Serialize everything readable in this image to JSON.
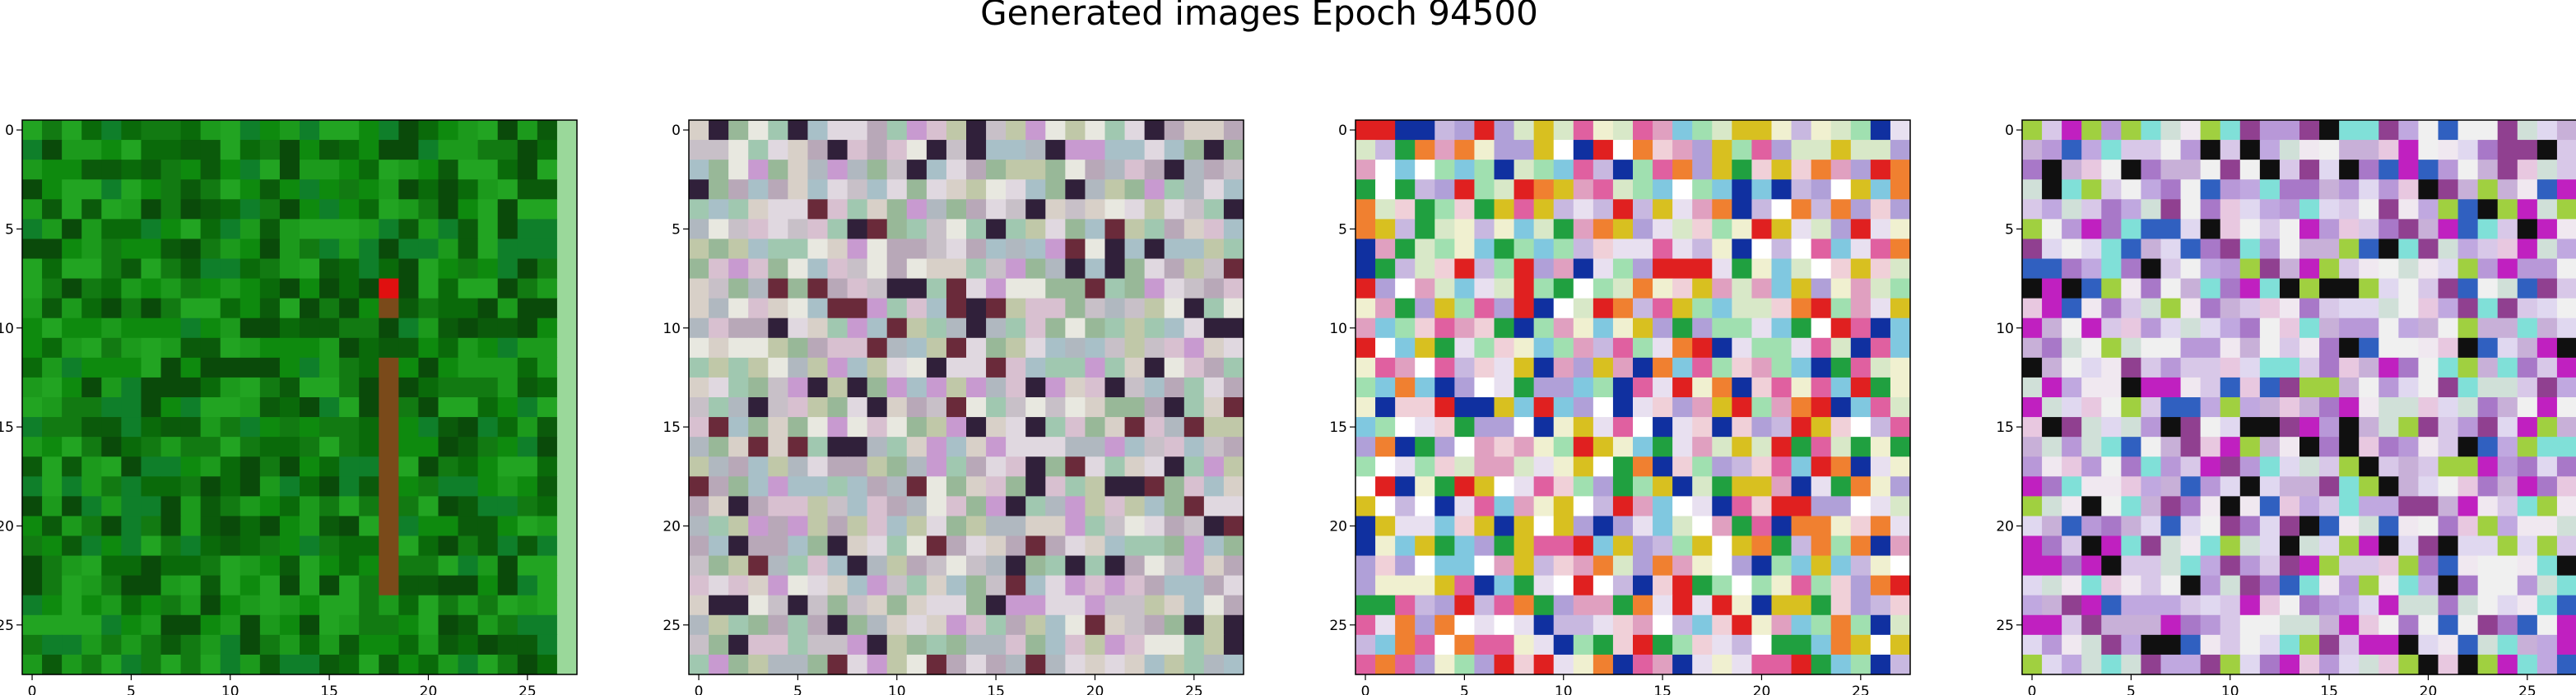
{
  "title": "Generated images Epoch 94500",
  "chart_data": {
    "type": "heatmap",
    "title": "Generated images Epoch 94500",
    "grid": false,
    "panels": [
      {
        "name": "",
        "size": [
          28,
          28
        ],
        "xticks": [
          0,
          5,
          10,
          15,
          20,
          25
        ],
        "yticks": [
          0,
          5,
          10,
          15,
          20,
          25
        ],
        "xlim": [
          -0.5,
          27.5
        ],
        "ylim": [
          27.5,
          -0.5
        ],
        "palette": [
          "#0e8a0e",
          "#127a12",
          "#0a6a0a",
          "#1c9a1c",
          "#0b5a0b",
          "#22a422",
          "#0f7f2a",
          "#0a4a0a"
        ],
        "stripe_color": "#7a4a1a",
        "stripe_column": 18,
        "accent_color": "#e01010",
        "edge_color": "#9ad89a"
      },
      {
        "name": "",
        "size": [
          28,
          28
        ],
        "xticks": [
          0,
          5,
          10,
          15,
          20,
          25
        ],
        "yticks": [
          0,
          5,
          10,
          15,
          20,
          25
        ],
        "xlim": [
          -0.5,
          27.5
        ],
        "ylim": [
          27.5,
          -0.5
        ],
        "palette": [
          "#c8c0c8",
          "#d8d0c8",
          "#b0b8c0",
          "#e0d8e0",
          "#c0c8a8",
          "#a8c0c8",
          "#d8c0d0",
          "#e8e8e0",
          "#b8a8b8",
          "#98b898",
          "#6a2a3a",
          "#30203a",
          "#c89ad0",
          "#a0c8b0"
        ]
      },
      {
        "name": "",
        "size": [
          28,
          28
        ],
        "xticks": [
          0,
          5,
          10,
          15,
          20,
          25
        ],
        "yticks": [
          0,
          5,
          10,
          15,
          20,
          25
        ],
        "xlim": [
          -0.5,
          27.5
        ],
        "ylim": [
          27.5,
          -0.5
        ],
        "palette": [
          "#e8e0f0",
          "#c8b8e0",
          "#f0d0d8",
          "#ffffff",
          "#d8e8c8",
          "#b0a0d8",
          "#e0a0c0",
          "#e02020",
          "#f08030",
          "#20a040",
          "#1030a0",
          "#d8c020",
          "#a0e0b0",
          "#f0f0d0",
          "#e060a0",
          "#80c8e0"
        ]
      },
      {
        "name": "",
        "size": [
          28,
          28
        ],
        "xticks": [
          0,
          5,
          10,
          15,
          20,
          25
        ],
        "yticks": [
          0,
          5,
          10,
          15,
          20,
          25
        ],
        "xlim": [
          -0.5,
          27.5
        ],
        "ylim": [
          27.5,
          -0.5
        ],
        "palette": [
          "#d8c8e8",
          "#c0a8e0",
          "#e0d8f0",
          "#b898d8",
          "#f0e8f0",
          "#a878c8",
          "#d0e0d8",
          "#c8b0d8",
          "#e8c8e0",
          "#80e0d8",
          "#c020c0",
          "#3060c0",
          "#101010",
          "#a0d040",
          "#f0f0f0",
          "#904090"
        ]
      }
    ]
  }
}
